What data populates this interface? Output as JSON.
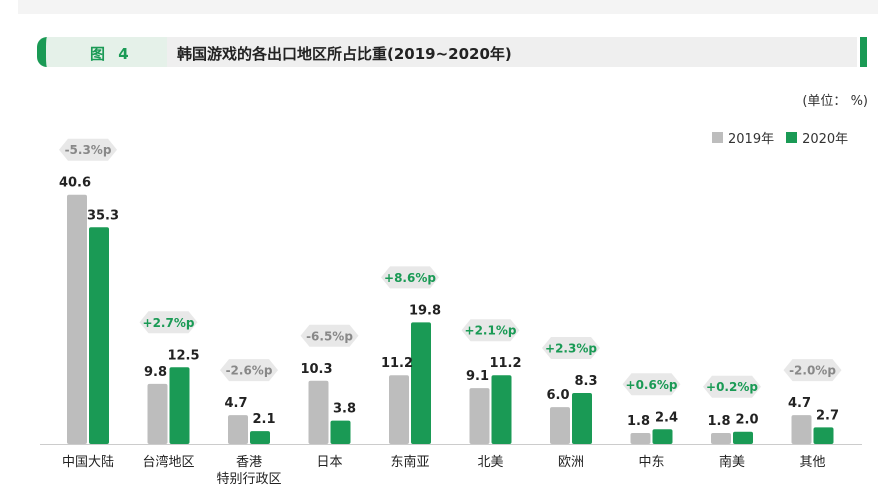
{
  "header": {
    "figure_label": "图 4",
    "title": "韩国游戏的各出口地区所占比重(2019~2020年)"
  },
  "unit_note": "(单位：  %)",
  "legend": [
    {
      "label": "2019年",
      "color": "#bdbdbd"
    },
    {
      "label": "2020年",
      "color": "#1a9a55"
    }
  ],
  "colors": {
    "bar_2019": "#bdbdbd",
    "bar_2020": "#1a9a55",
    "change_positive": "#1a9a55",
    "change_negative": "#888888",
    "arrow_bg": "#e8e8e8"
  },
  "chart_data": {
    "type": "bar",
    "categories": [
      "中国大陆",
      "台湾地区",
      "香港\n特别行政区",
      "日本",
      "东南亚",
      "北美",
      "欧洲",
      "中东",
      "南美",
      "其他"
    ],
    "series": [
      {
        "name": "2019年",
        "values": [
          40.6,
          9.8,
          4.7,
          10.3,
          11.2,
          9.1,
          6.0,
          1.8,
          1.8,
          4.7
        ]
      },
      {
        "name": "2020年",
        "values": [
          35.3,
          12.5,
          2.1,
          3.8,
          19.8,
          11.2,
          8.3,
          2.4,
          2.0,
          2.7
        ]
      }
    ],
    "value_labels_2019": [
      "40.6",
      "9.8",
      "4.7",
      "10.3",
      "11.2",
      "9.1",
      "6.0",
      "1.8",
      "1.8",
      "4.7"
    ],
    "value_labels_2020": [
      "35.3",
      "12.5",
      "2.1",
      "3.8",
      "19.8",
      "11.2",
      "8.3",
      "2.4",
      "2.0",
      "2.7"
    ],
    "changes": [
      "-5.3%p",
      "+2.7%p",
      "-2.6%p",
      "-6.5%p",
      "+8.6%p",
      "+2.1%p",
      "+2.3%p",
      "+0.6%p",
      "+0.2%p",
      "-2.0%p"
    ],
    "title": "韩国游戏的各出口地区所占比重(2019~2020年)",
    "xlabel": "",
    "ylabel": "",
    "ylim": [
      0,
      41
    ],
    "grid": false,
    "legend_position": "top-right"
  }
}
